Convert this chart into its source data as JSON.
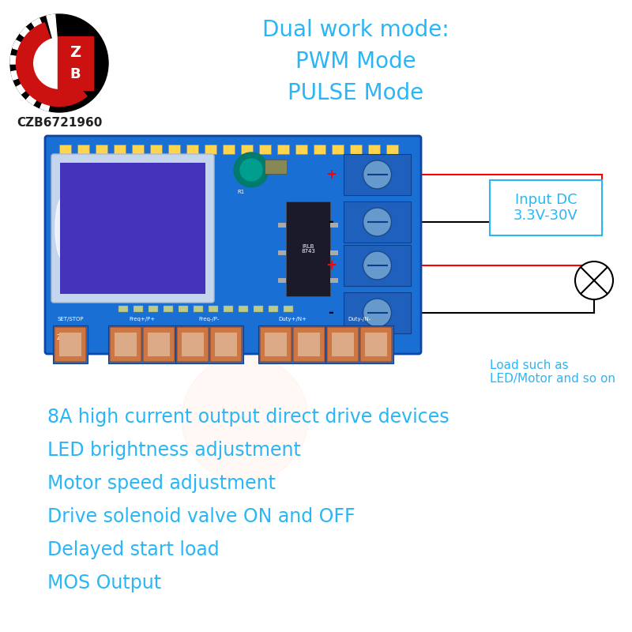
{
  "bg_color": "#ffffff",
  "title_color": "#29b6f6",
  "feature_color": "#29b6f6",
  "title_line1": "Dual work mode:",
  "title_line2": "PWM Mode",
  "title_line3": "PULSE Mode",
  "features": [
    "8A high current output direct drive devices",
    "LED brightness adjustment",
    "Motor speed adjustment",
    "Drive solenoid valve ON and OFF",
    "Delayed start load",
    "MOS Output"
  ],
  "input_dc_label": "Input DC\n3.3V-30V",
  "load_label": "Load such as\nLED/Motor and so on",
  "board_color": "#1a6fd4",
  "lcd_bg_color": "#c5d5ee",
  "lcd_screen_color": "#4433bb",
  "connector_color": "#5599dd",
  "logo_text": "CZB6721960",
  "logo_text_color": "#222222",
  "title_fontsize": 20,
  "feature_fontsize": 17,
  "annotation_fontsize": 13
}
